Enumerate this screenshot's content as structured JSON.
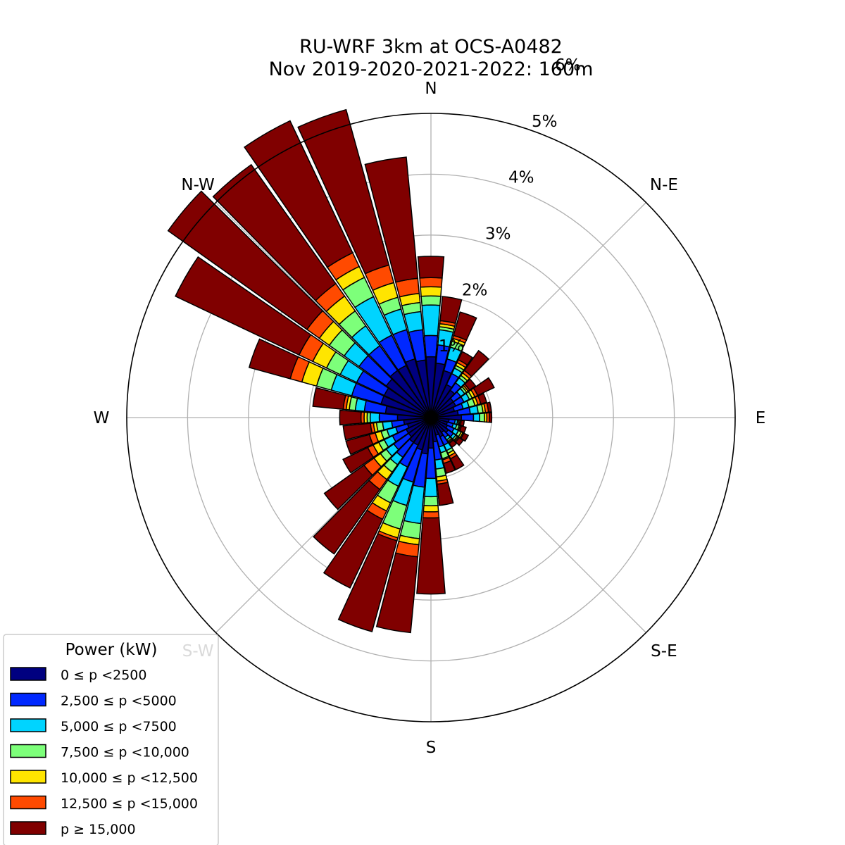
{
  "chart_data": {
    "type": "windrose",
    "title_line1": "RU-WRF 3km at OCS-A0482",
    "title_line2": "Nov 2019-2020-2021-2022: 160m",
    "direction_labels": [
      "N",
      "N-E",
      "E",
      "S-E",
      "S",
      "S-W",
      "W",
      "N-W"
    ],
    "radial_ticks": [
      1,
      2,
      3,
      4,
      5,
      6
    ],
    "radial_tick_labels": [
      "1%",
      "2%",
      "3%",
      "4%",
      "5%",
      "6%"
    ],
    "rmax_percent": 5.0,
    "sector_count": 36,
    "legend": {
      "title": "Power (kW)",
      "placement": "lower-left",
      "entries": [
        {
          "label": "0 ≤  p <2500",
          "color": "#000080"
        },
        {
          "label": "2,500 ≤  p <5000",
          "color": "#0028ff"
        },
        {
          "label": "5,000 ≤  p <7500",
          "color": "#00d4ff"
        },
        {
          "label": "7,500 ≤  p <10,000",
          "color": "#7dff7a"
        },
        {
          "label": "10,000 ≤  p <12,500",
          "color": "#ffe500"
        },
        {
          "label": "12,500 ≤  p <15,000",
          "color": "#ff4a00"
        },
        {
          "label": "p  ≥ 15,000",
          "color": "#800000"
        }
      ]
    },
    "sectors": [
      {
        "dir": 0,
        "cum": [
          1.0,
          1.35,
          1.85,
          2.0,
          2.15,
          2.3,
          2.65
        ]
      },
      {
        "dir": 10,
        "cum": [
          0.9,
          1.2,
          1.45,
          1.5,
          1.55,
          1.6,
          2.0
        ]
      },
      {
        "dir": 20,
        "cum": [
          0.8,
          1.0,
          1.2,
          1.3,
          1.35,
          1.4,
          1.8
        ]
      },
      {
        "dir": 30,
        "cum": [
          0.6,
          0.8,
          0.9,
          0.95,
          1.0,
          1.05,
          1.2
        ]
      },
      {
        "dir": 40,
        "cum": [
          0.55,
          0.7,
          0.8,
          0.85,
          0.9,
          0.95,
          1.35
        ]
      },
      {
        "dir": 50,
        "cum": [
          0.45,
          0.6,
          0.68,
          0.72,
          0.75,
          0.78,
          0.9
        ]
      },
      {
        "dir": 60,
        "cum": [
          0.45,
          0.6,
          0.7,
          0.75,
          0.8,
          0.85,
          1.15
        ]
      },
      {
        "dir": 70,
        "cum": [
          0.4,
          0.55,
          0.65,
          0.75,
          0.8,
          0.85,
          0.95
        ]
      },
      {
        "dir": 80,
        "cum": [
          0.45,
          0.65,
          0.78,
          0.86,
          0.9,
          0.95,
          1.0
        ]
      },
      {
        "dir": 90,
        "cum": [
          0.5,
          0.7,
          0.8,
          0.88,
          0.92,
          0.96,
          1.0
        ]
      },
      {
        "dir": 100,
        "cum": [
          0.3,
          0.4,
          0.44,
          0.46,
          0.48,
          0.5,
          0.55
        ]
      },
      {
        "dir": 110,
        "cum": [
          0.28,
          0.38,
          0.44,
          0.48,
          0.5,
          0.52,
          0.6
        ]
      },
      {
        "dir": 120,
        "cum": [
          0.3,
          0.42,
          0.5,
          0.55,
          0.58,
          0.6,
          0.68
        ]
      },
      {
        "dir": 130,
        "cum": [
          0.35,
          0.45,
          0.5,
          0.53,
          0.55,
          0.57,
          0.65
        ]
      },
      {
        "dir": 140,
        "cum": [
          0.3,
          0.4,
          0.45,
          0.48,
          0.5,
          0.52,
          0.6
        ]
      },
      {
        "dir": 150,
        "cum": [
          0.35,
          0.5,
          0.6,
          0.65,
          0.7,
          0.75,
          0.95
        ]
      },
      {
        "dir": 160,
        "cum": [
          0.3,
          0.5,
          0.6,
          0.7,
          0.72,
          0.78,
          0.95
        ]
      },
      {
        "dir": 170,
        "cum": [
          0.4,
          0.7,
          0.85,
          0.98,
          1.05,
          1.1,
          1.45
        ]
      },
      {
        "dir": 180,
        "cum": [
          0.5,
          1.0,
          1.3,
          1.45,
          1.55,
          1.65,
          2.9
        ]
      },
      {
        "dir": 190,
        "cum": [
          0.6,
          1.15,
          1.75,
          2.0,
          2.1,
          2.3,
          3.55
        ]
      },
      {
        "dir": 200,
        "cum": [
          0.55,
          1.1,
          1.5,
          1.9,
          2.05,
          2.1,
          3.65
        ]
      },
      {
        "dir": 210,
        "cum": [
          0.5,
          0.9,
          1.25,
          1.55,
          1.7,
          1.85,
          3.1
        ]
      },
      {
        "dir": 220,
        "cum": [
          0.5,
          0.8,
          0.95,
          1.1,
          1.25,
          1.45,
          2.75
        ]
      },
      {
        "dir": 230,
        "cum": [
          0.45,
          0.75,
          0.9,
          1.02,
          1.15,
          1.35,
          2.15
        ]
      },
      {
        "dir": 240,
        "cum": [
          0.45,
          0.7,
          0.85,
          0.95,
          1.05,
          1.15,
          1.6
        ]
      },
      {
        "dir": 250,
        "cum": [
          0.4,
          0.6,
          0.75,
          0.85,
          0.95,
          1.05,
          1.45
        ]
      },
      {
        "dir": 260,
        "cum": [
          0.45,
          0.65,
          0.8,
          0.9,
          0.95,
          1.0,
          1.45
        ]
      },
      {
        "dir": 270,
        "cum": [
          0.55,
          0.85,
          1.0,
          1.05,
          1.1,
          1.15,
          1.5
        ]
      },
      {
        "dir": 280,
        "cum": [
          0.75,
          1.1,
          1.25,
          1.35,
          1.4,
          1.45,
          1.95
        ]
      },
      {
        "dir": 290,
        "cum": [
          0.85,
          1.35,
          1.7,
          1.95,
          2.2,
          2.4,
          3.1
        ]
      },
      {
        "dir": 300,
        "cum": [
          0.85,
          1.35,
          1.65,
          1.9,
          2.15,
          2.4,
          4.65
        ]
      },
      {
        "dir": 310,
        "cum": [
          0.9,
          1.45,
          1.75,
          2.05,
          2.25,
          2.5,
          5.3
        ]
      },
      {
        "dir": 320,
        "cum": [
          0.95,
          1.45,
          1.85,
          2.15,
          2.45,
          2.7,
          5.1
        ]
      },
      {
        "dir": 330,
        "cum": [
          0.95,
          1.5,
          2.2,
          2.55,
          2.75,
          3.0,
          5.4
        ]
      },
      {
        "dir": 340,
        "cum": [
          1.0,
          1.5,
          1.85,
          2.05,
          2.3,
          2.6,
          5.25
        ]
      },
      {
        "dir": 350,
        "cum": [
          0.95,
          1.45,
          1.75,
          1.9,
          2.05,
          2.3,
          4.3
        ]
      }
    ]
  }
}
